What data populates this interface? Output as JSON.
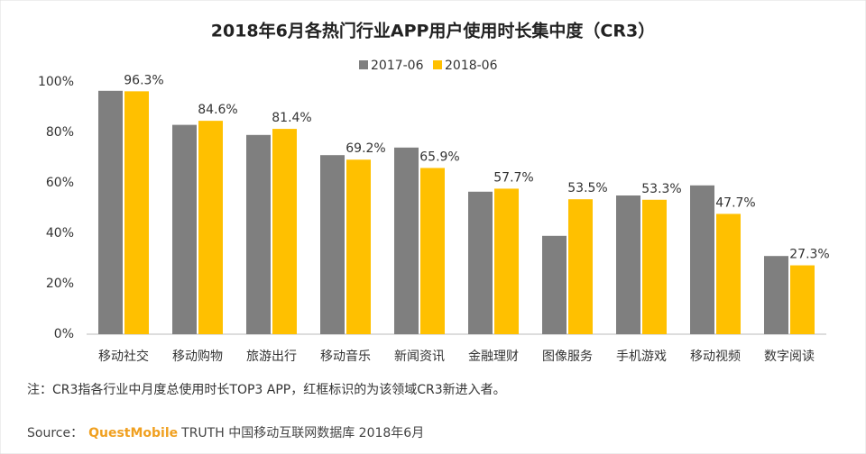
{
  "chart_data": {
    "type": "bar",
    "title": "2018年6月各热门行业APP用户使用时长集中度（CR3）",
    "categories": [
      "移动社交",
      "移动购物",
      "旅游出行",
      "移动音乐",
      "新闻资讯",
      "金融理财",
      "图像服务",
      "手机游戏",
      "移动视频",
      "数字阅读"
    ],
    "series": [
      {
        "name": "2017-06",
        "color": "#7f7f7f",
        "values": [
          96.5,
          83,
          79,
          71,
          74,
          56.5,
          39,
          55,
          59,
          31
        ]
      },
      {
        "name": "2018-06",
        "color": "#ffc000",
        "values": [
          96.3,
          84.6,
          81.4,
          69.2,
          65.9,
          57.7,
          53.5,
          53.3,
          47.7,
          27.3
        ],
        "value_labels": [
          "96.3%",
          "84.6%",
          "81.4%",
          "69.2%",
          "65.9%",
          "57.7%",
          "53.5%",
          "53.3%",
          "47.7%",
          "27.3%"
        ]
      }
    ],
    "ylim": [
      0,
      100
    ],
    "yticks": [
      {
        "value": 0,
        "label": "0%"
      },
      {
        "value": 20,
        "label": "20%"
      },
      {
        "value": 40,
        "label": "40%"
      },
      {
        "value": 60,
        "label": "60%"
      },
      {
        "value": 80,
        "label": "80%"
      },
      {
        "value": 100,
        "label": "100%"
      }
    ],
    "legend": "top",
    "note": "注：CR3指各行业中月度总使用时长TOP3 APP，红框标识的为该领域CR3新进入者。",
    "source_prefix": "Source：",
    "source_brand": "QuestMobile",
    "source_rest": "TRUTH 中国移动互联网数据库 2018年6月"
  }
}
